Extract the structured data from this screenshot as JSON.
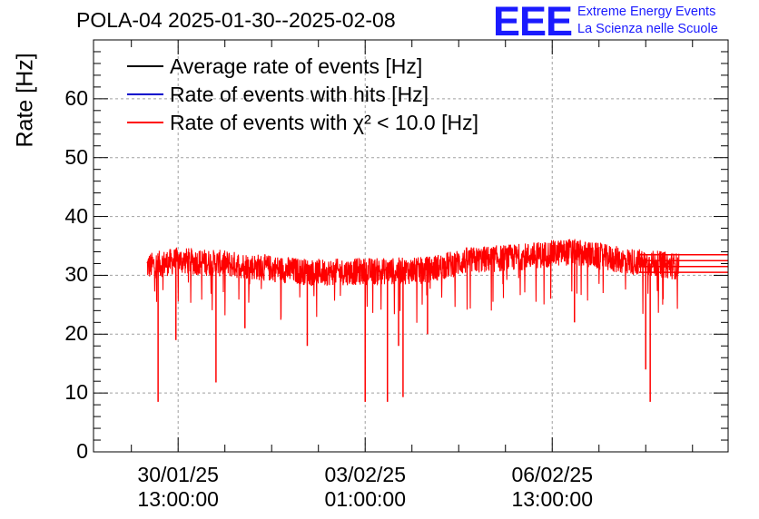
{
  "chart_data": {
    "type": "line",
    "title": "POLA-04 2025-01-30--2025-02-08",
    "ylabel": "Rate [Hz]",
    "xlabel": "",
    "ylim": [
      0,
      70
    ],
    "grid": true,
    "legend_position": "top-left",
    "y_ticks": [
      0,
      10,
      20,
      30,
      40,
      50,
      60
    ],
    "y_tick_labels": [
      "0",
      "10",
      "20",
      "30",
      "40",
      "50",
      "60"
    ],
    "x_ticks": [
      {
        "date": "30/01/25",
        "time": "13:00:00",
        "hours": 0
      },
      {
        "date": "03/02/25",
        "time": "01:00:00",
        "hours": 84
      },
      {
        "date": "06/02/25",
        "time": "13:00:00",
        "hours": 168
      }
    ],
    "xlim_hours": [
      -38,
      247
    ],
    "series": [
      {
        "name": "Average rate of events [Hz]",
        "color": "#000000"
      },
      {
        "name": "Rate of events with hits [Hz]",
        "color": "#0000cc"
      },
      {
        "name": "Rate of events with χ² < 10.0 [Hz]",
        "color": "#ff0000",
        "start_hours": -14,
        "end_hours": 225,
        "baseline": [
          {
            "hours": -14,
            "value": 31.5
          },
          {
            "hours": 0,
            "value": 32.5
          },
          {
            "hours": 20,
            "value": 32
          },
          {
            "hours": 60,
            "value": 30.5
          },
          {
            "hours": 110,
            "value": 30.8
          },
          {
            "hours": 130,
            "value": 32.5
          },
          {
            "hours": 150,
            "value": 33
          },
          {
            "hours": 176,
            "value": 34
          },
          {
            "hours": 200,
            "value": 32.5
          },
          {
            "hours": 225,
            "value": 31.5
          }
        ],
        "dips": [
          {
            "hours": -9,
            "value": 8.5
          },
          {
            "hours": -1,
            "value": 19
          },
          {
            "hours": 17,
            "value": 11.8
          },
          {
            "hours": 84,
            "value": 8.5
          },
          {
            "hours": 94,
            "value": 8.5
          },
          {
            "hours": 99,
            "value": 18
          },
          {
            "hours": 101,
            "value": 9.3
          },
          {
            "hours": 58,
            "value": 18
          },
          {
            "hours": 210,
            "value": 14
          },
          {
            "hours": 212,
            "value": 8.5
          },
          {
            "hours": 178,
            "value": 22
          },
          {
            "hours": 112,
            "value": 20
          },
          {
            "hours": 30,
            "value": 21
          }
        ],
        "tail_levels": [
          30.5,
          31.5,
          32.5,
          33.5
        ]
      }
    ]
  },
  "header": {
    "logo": "EEE",
    "logo_line1": "Extreme Energy Events",
    "logo_line2": "La Scienza nelle Scuole"
  }
}
